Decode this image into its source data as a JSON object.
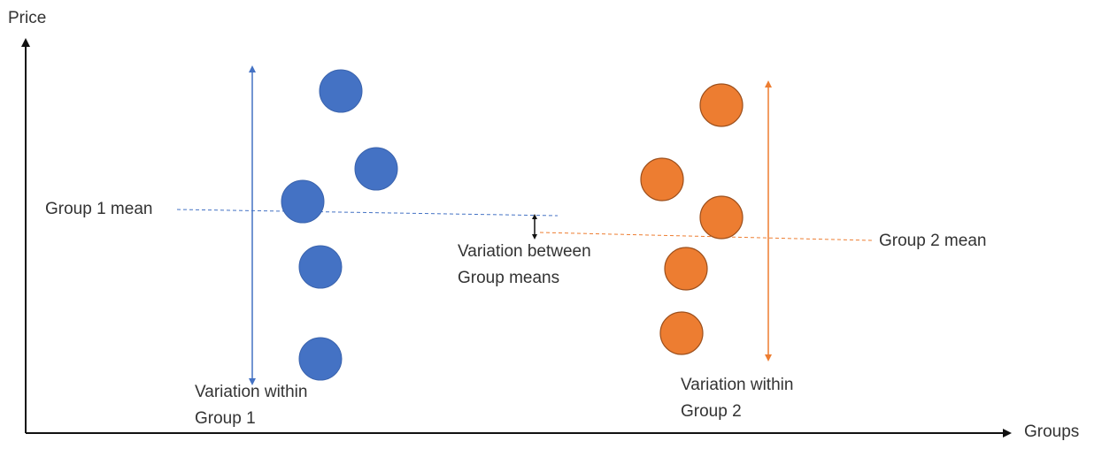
{
  "axes": {
    "y_label": "Price",
    "x_label": "Groups"
  },
  "group1": {
    "mean_label": "Group 1 mean",
    "variation_label_line1": "Variation within",
    "variation_label_line2": "Group 1",
    "color": "#4472C4",
    "point_count": 5
  },
  "group2": {
    "mean_label": "Group 2 mean",
    "variation_label_line1": "Variation within",
    "variation_label_line2": "Group 2",
    "color": "#ED7D31",
    "point_count": 5
  },
  "between": {
    "label_line1": "Variation between",
    "label_line2": "Group means"
  },
  "colors": {
    "axis": "#111111",
    "text": "#333333"
  }
}
